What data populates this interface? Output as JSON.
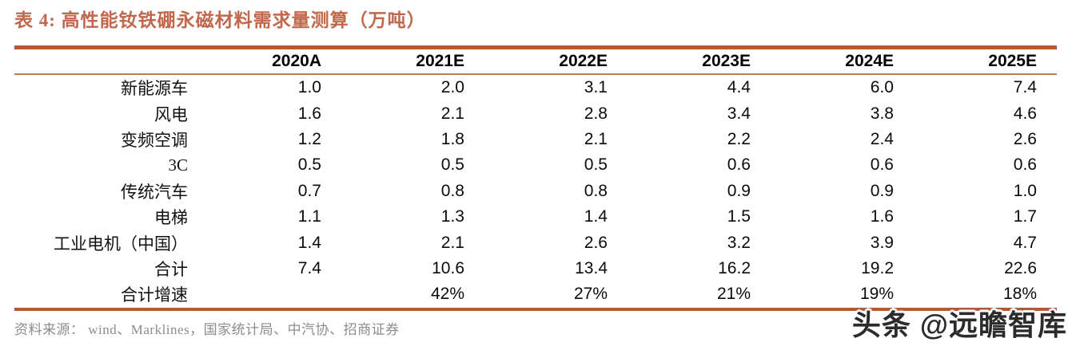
{
  "title": "表 4:  高性能钕铁硼永磁材料需求量测算（万吨）",
  "table": {
    "columns": [
      "2020A",
      "2021E",
      "2022E",
      "2023E",
      "2024E",
      "2025E"
    ],
    "rows": [
      {
        "label": "新能源车",
        "values": [
          "1.0",
          "2.0",
          "3.1",
          "4.4",
          "6.0",
          "7.4"
        ]
      },
      {
        "label": "风电",
        "values": [
          "1.6",
          "2.1",
          "2.8",
          "3.4",
          "3.8",
          "4.6"
        ]
      },
      {
        "label": "变频空调",
        "values": [
          "1.2",
          "1.8",
          "2.1",
          "2.2",
          "2.4",
          "2.6"
        ]
      },
      {
        "label": "3C",
        "values": [
          "0.5",
          "0.5",
          "0.5",
          "0.6",
          "0.6",
          "0.6"
        ]
      },
      {
        "label": "传统汽车",
        "values": [
          "0.7",
          "0.8",
          "0.8",
          "0.9",
          "0.9",
          "1.0"
        ]
      },
      {
        "label": "电梯",
        "values": [
          "1.1",
          "1.3",
          "1.4",
          "1.5",
          "1.6",
          "1.7"
        ]
      },
      {
        "label": "工业电机（中国）",
        "values": [
          "1.4",
          "2.1",
          "2.6",
          "3.2",
          "3.9",
          "4.7"
        ]
      },
      {
        "label": "合计",
        "values": [
          "7.4",
          "10.6",
          "13.4",
          "16.2",
          "19.2",
          "22.6"
        ]
      },
      {
        "label": "合计增速",
        "values": [
          "",
          "42%",
          "27%",
          "21%",
          "19%",
          "18%"
        ]
      }
    ]
  },
  "source": "资料来源：  wind、Marklines，国家统计局、中汽协、招商证券",
  "watermark": "头条 @远瞻智库",
  "colors": {
    "accent": "#C1674B",
    "border": "#B15A38",
    "border_light": "#C47A55",
    "source_text": "#8C8C8C",
    "watermark_text": "#2B2B2B"
  }
}
